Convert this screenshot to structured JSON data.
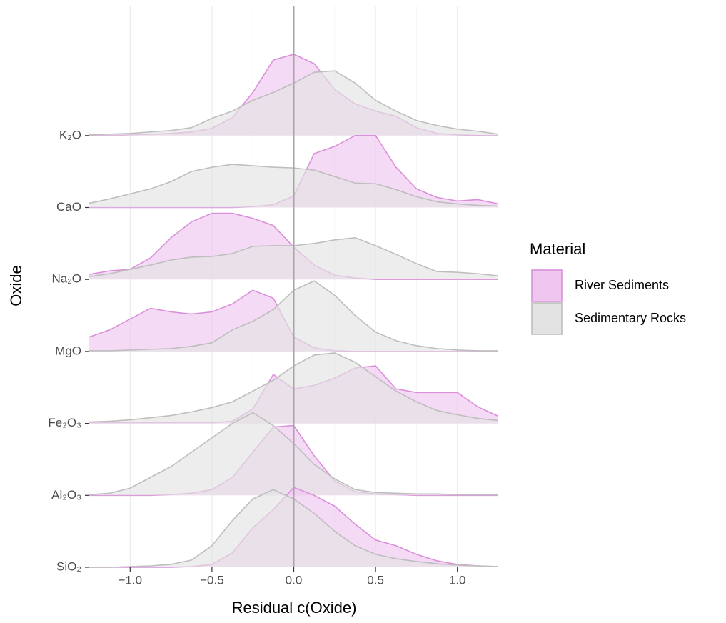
{
  "chart_data": {
    "type": "ridgeline",
    "x_label": "Residual c(Oxide)",
    "y_label": "Oxide",
    "legend_title": "Material",
    "xlim": [
      -1.25,
      1.25
    ],
    "xticks": [
      {
        "value": -1,
        "label": "−1.0"
      },
      {
        "value": -0.5,
        "label": "−0.5"
      },
      {
        "value": 0,
        "label": "0.0"
      },
      {
        "value": 0.5,
        "label": "0.5"
      },
      {
        "value": 1,
        "label": "1.0"
      }
    ],
    "vline": 0,
    "grid": true,
    "legend": "right",
    "categories": [
      "K₂O",
      "CaO",
      "Na₂O",
      "MgO",
      "Fe₂O₃",
      "Al₂O₃",
      "SiO₂"
    ],
    "x": [
      -1.25,
      -1.125,
      -1,
      -0.875,
      -0.75,
      -0.625,
      -0.5,
      -0.375,
      -0.25,
      -0.125,
      0,
      0.125,
      0.25,
      0.375,
      0.5,
      0.625,
      0.75,
      0.875,
      1,
      1.125,
      1.25
    ],
    "series": [
      {
        "name": "River Sediments",
        "color": "#DA8FDA",
        "fill": "#EFC6EF",
        "values": [
          [
            0,
            0,
            0.01,
            0.02,
            0.03,
            0.05,
            0.1,
            0.25,
            0.6,
            1.05,
            1.13,
            1.0,
            0.64,
            0.44,
            0.34,
            0.27,
            0.11,
            0.03,
            0.01,
            0,
            0
          ],
          [
            0,
            0,
            0,
            0,
            0,
            0,
            0,
            0,
            0.01,
            0.04,
            0.16,
            0.75,
            0.85,
            1.0,
            1.0,
            0.56,
            0.26,
            0.14,
            0.09,
            0.11,
            0.05
          ],
          [
            0.07,
            0.12,
            0.14,
            0.3,
            0.58,
            0.8,
            0.92,
            0.92,
            0.85,
            0.75,
            0.45,
            0.2,
            0.06,
            0.02,
            0,
            0,
            0,
            0,
            0,
            0,
            0
          ],
          [
            0.2,
            0.3,
            0.45,
            0.6,
            0.55,
            0.52,
            0.55,
            0.66,
            0.85,
            0.74,
            0.2,
            0.05,
            0.01,
            0,
            0,
            0,
            0,
            0,
            0,
            0,
            0
          ],
          [
            0.01,
            0.01,
            0.01,
            0.01,
            0.01,
            0.01,
            0.01,
            0.03,
            0.2,
            0.68,
            0.48,
            0.53,
            0.63,
            0.77,
            0.8,
            0.48,
            0.43,
            0.43,
            0.43,
            0.23,
            0.1
          ],
          [
            0,
            0,
            0,
            0,
            0.01,
            0.03,
            0.08,
            0.25,
            0.6,
            0.95,
            0.97,
            0.55,
            0.2,
            0.05,
            0.02,
            0.01,
            0,
            0,
            0,
            0,
            0
          ],
          [
            0,
            0,
            0,
            0,
            0,
            0.01,
            0.04,
            0.2,
            0.55,
            0.8,
            1.11,
            1.0,
            0.85,
            0.6,
            0.38,
            0.3,
            0.18,
            0.09,
            0.04,
            0.02,
            0.01
          ]
        ]
      },
      {
        "name": "Sedimentary Rocks",
        "color": "#BEBEBE",
        "fill": "#E3E3E3",
        "values": [
          [
            0.01,
            0.02,
            0.03,
            0.05,
            0.07,
            0.11,
            0.24,
            0.34,
            0.49,
            0.6,
            0.73,
            0.88,
            0.9,
            0.73,
            0.49,
            0.34,
            0.21,
            0.14,
            0.09,
            0.06,
            0.02
          ],
          [
            0.06,
            0.12,
            0.19,
            0.26,
            0.36,
            0.5,
            0.56,
            0.6,
            0.58,
            0.56,
            0.55,
            0.52,
            0.43,
            0.34,
            0.33,
            0.25,
            0.15,
            0.08,
            0.05,
            0.03,
            0.02
          ],
          [
            0.04,
            0.08,
            0.14,
            0.2,
            0.27,
            0.31,
            0.32,
            0.36,
            0.46,
            0.47,
            0.47,
            0.5,
            0.55,
            0.58,
            0.47,
            0.35,
            0.22,
            0.11,
            0.1,
            0.08,
            0.05
          ],
          [
            0.01,
            0.01,
            0.02,
            0.03,
            0.04,
            0.07,
            0.12,
            0.3,
            0.42,
            0.58,
            0.85,
            0.98,
            0.78,
            0.5,
            0.27,
            0.15,
            0.08,
            0.04,
            0.02,
            0.01,
            0.01
          ],
          [
            0.02,
            0.03,
            0.05,
            0.08,
            0.11,
            0.16,
            0.22,
            0.3,
            0.45,
            0.6,
            0.8,
            0.95,
            0.98,
            0.85,
            0.65,
            0.45,
            0.3,
            0.18,
            0.12,
            0.07,
            0.04
          ],
          [
            0.01,
            0.03,
            0.1,
            0.25,
            0.4,
            0.6,
            0.8,
            1.0,
            1.15,
            0.97,
            0.72,
            0.43,
            0.23,
            0.08,
            0.04,
            0.03,
            0.02,
            0.02,
            0.01,
            0.01,
            0.01
          ],
          [
            0,
            0,
            0.01,
            0.02,
            0.04,
            0.1,
            0.3,
            0.65,
            0.95,
            1.08,
            0.95,
            0.75,
            0.5,
            0.3,
            0.18,
            0.12,
            0.08,
            0.05,
            0.03,
            0.02,
            0.01
          ]
        ]
      }
    ]
  }
}
